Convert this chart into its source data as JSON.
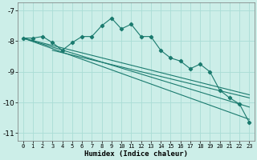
{
  "zigzag_x": [
    0,
    1,
    2,
    3,
    4,
    5,
    6,
    7,
    8,
    9,
    10,
    11,
    12,
    13,
    14,
    15,
    16,
    17,
    18,
    19,
    20,
    21,
    22,
    23
  ],
  "zigzag_y": [
    -7.9,
    -7.9,
    -7.85,
    -8.05,
    -8.3,
    -8.05,
    -7.85,
    -7.85,
    -7.5,
    -7.25,
    -7.6,
    -7.45,
    -7.85,
    -7.85,
    -8.3,
    -8.55,
    -8.65,
    -8.9,
    -8.75,
    -9.0,
    -9.6,
    -9.85,
    -10.05,
    -10.65
  ],
  "line1_x": [
    0,
    23
  ],
  "line1_y": [
    -7.9,
    -9.75
  ],
  "line2_x": [
    0,
    23
  ],
  "line2_y": [
    -7.9,
    -10.15
  ],
  "line3_x": [
    3,
    23
  ],
  "line3_y": [
    -8.3,
    -9.85
  ],
  "line4_x": [
    0,
    23
  ],
  "line4_y": [
    -7.9,
    -10.55
  ],
  "color": "#1a7a6e",
  "bg_color": "#cceee8",
  "grid_color": "#aaddd5",
  "xlabel": "Humidex (Indice chaleur)",
  "xlim": [
    -0.5,
    23.5
  ],
  "ylim": [
    -11.25,
    -6.75
  ],
  "yticks": [
    -11,
    -10,
    -9,
    -8,
    -7
  ],
  "xticks": [
    0,
    1,
    2,
    3,
    4,
    5,
    6,
    7,
    8,
    9,
    10,
    11,
    12,
    13,
    14,
    15,
    16,
    17,
    18,
    19,
    20,
    21,
    22,
    23
  ]
}
